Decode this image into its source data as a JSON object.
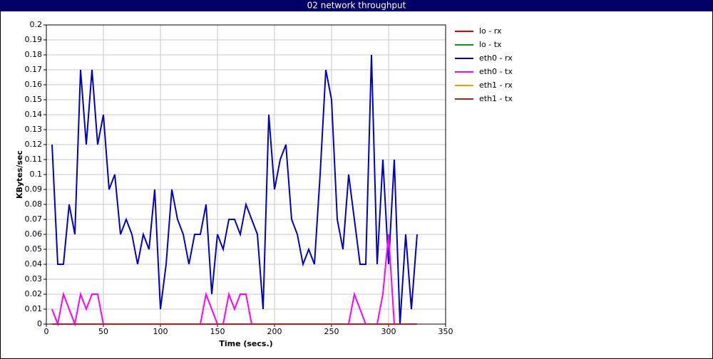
{
  "chart_data": {
    "type": "line",
    "title": "02 network throughput",
    "x_label": "Time (secs.)",
    "y_label": "KBytes/sec",
    "x": [
      5,
      10,
      15,
      20,
      25,
      30,
      35,
      40,
      45,
      50,
      55,
      60,
      65,
      70,
      75,
      80,
      85,
      90,
      95,
      100,
      105,
      110,
      115,
      120,
      125,
      130,
      135,
      140,
      145,
      150,
      155,
      160,
      165,
      170,
      175,
      180,
      185,
      190,
      195,
      200,
      205,
      210,
      215,
      220,
      225,
      230,
      235,
      240,
      245,
      250,
      255,
      260,
      265,
      270,
      275,
      280,
      285,
      290,
      295,
      300,
      305,
      310,
      315,
      320,
      325
    ],
    "series": [
      {
        "name": "lo - rx",
        "color": "#e00000",
        "values": [
          0,
          0,
          0,
          0,
          0,
          0,
          0,
          0,
          0,
          0,
          0,
          0,
          0,
          0,
          0,
          0,
          0,
          0,
          0,
          0,
          0,
          0,
          0,
          0,
          0,
          0,
          0,
          0,
          0,
          0,
          0,
          0,
          0,
          0,
          0,
          0,
          0,
          0,
          0,
          0,
          0,
          0,
          0,
          0,
          0,
          0,
          0,
          0,
          0,
          0,
          0,
          0,
          0,
          0,
          0,
          0,
          0,
          0,
          0,
          0,
          0,
          0,
          0,
          0,
          0
        ]
      },
      {
        "name": "lo - tx",
        "color": "#00a000",
        "values": [
          0,
          0,
          0,
          0,
          0,
          0,
          0,
          0,
          0,
          0,
          0,
          0,
          0,
          0,
          0,
          0,
          0,
          0,
          0,
          0,
          0,
          0,
          0,
          0,
          0,
          0,
          0,
          0,
          0,
          0,
          0,
          0,
          0,
          0,
          0,
          0,
          0,
          0,
          0,
          0,
          0,
          0,
          0,
          0,
          0,
          0,
          0,
          0,
          0,
          0,
          0,
          0,
          0,
          0,
          0,
          0,
          0,
          0,
          0,
          0,
          0,
          0,
          0,
          0,
          0
        ]
      },
      {
        "name": "eth0 - rx",
        "color": "#0000cc",
        "values": [
          0.12,
          0.04,
          0.04,
          0.08,
          0.06,
          0.17,
          0.12,
          0.17,
          0.12,
          0.14,
          0.09,
          0.1,
          0.06,
          0.07,
          0.06,
          0.04,
          0.06,
          0.05,
          0.09,
          0.01,
          0.04,
          0.09,
          0.07,
          0.06,
          0.04,
          0.06,
          0.06,
          0.08,
          0.02,
          0.06,
          0.05,
          0.07,
          0.07,
          0.06,
          0.08,
          0.07,
          0.06,
          0.01,
          0.14,
          0.09,
          0.11,
          0.12,
          0.07,
          0.06,
          0.04,
          0.05,
          0.04,
          0.1,
          0.17,
          0.15,
          0.07,
          0.05,
          0.1,
          0.07,
          0.04,
          0.04,
          0.18,
          0.04,
          0.11,
          0.04,
          0.11,
          0,
          0.06,
          0.01,
          0.06
        ]
      },
      {
        "name": "eth0 - tx",
        "color": "#ff00ff",
        "values": [
          0.01,
          0,
          0.02,
          0.01,
          0,
          0.02,
          0.01,
          0.02,
          0.02,
          0,
          0,
          0,
          0,
          0,
          0,
          0,
          0,
          0,
          0,
          0,
          0,
          0,
          0,
          0,
          0,
          0,
          0,
          0.02,
          0.01,
          0,
          0,
          0.02,
          0.01,
          0.02,
          0.02,
          0,
          0,
          0,
          0,
          0,
          0,
          0,
          0,
          0,
          0,
          0,
          0,
          0,
          0,
          0,
          0,
          0,
          0,
          0.02,
          0.01,
          0,
          0,
          0,
          0.02,
          0.06,
          0,
          0,
          0,
          0,
          0
        ]
      },
      {
        "name": "eth1 - rx",
        "color": "#f0a000",
        "values": [
          0,
          0,
          0,
          0,
          0,
          0,
          0,
          0,
          0,
          0,
          0,
          0,
          0,
          0,
          0,
          0,
          0,
          0,
          0,
          0,
          0,
          0,
          0,
          0,
          0,
          0,
          0,
          0,
          0,
          0,
          0,
          0,
          0,
          0,
          0,
          0,
          0,
          0,
          0,
          0,
          0,
          0,
          0,
          0,
          0,
          0,
          0,
          0,
          0,
          0,
          0,
          0,
          0,
          0,
          0,
          0,
          0,
          0,
          0,
          0,
          0,
          0,
          0,
          0,
          0
        ]
      },
      {
        "name": "eth1 - tx",
        "color": "#b02020",
        "values": [
          0,
          0,
          0,
          0,
          0,
          0,
          0,
          0,
          0,
          0,
          0,
          0,
          0,
          0,
          0,
          0,
          0,
          0,
          0,
          0,
          0,
          0,
          0,
          0,
          0,
          0,
          0,
          0,
          0,
          0,
          0,
          0,
          0,
          0,
          0,
          0,
          0,
          0,
          0,
          0,
          0,
          0,
          0,
          0,
          0,
          0,
          0,
          0,
          0,
          0,
          0,
          0,
          0,
          0,
          0,
          0,
          0,
          0,
          0,
          0,
          0,
          0,
          0,
          0,
          0
        ]
      }
    ],
    "xlim": [
      0,
      350
    ],
    "xticks": [
      0,
      50,
      100,
      150,
      200,
      250,
      300,
      350
    ],
    "ylim": [
      0,
      0.2
    ],
    "yticks": [
      0,
      0.01,
      0.02,
      0.03,
      0.04,
      0.05,
      0.06,
      0.07,
      0.08,
      0.09,
      0.1,
      0.11,
      0.12,
      0.13,
      0.14,
      0.15,
      0.16,
      0.17,
      0.18,
      0.19,
      0.2
    ],
    "grid": true,
    "legend": "right"
  }
}
